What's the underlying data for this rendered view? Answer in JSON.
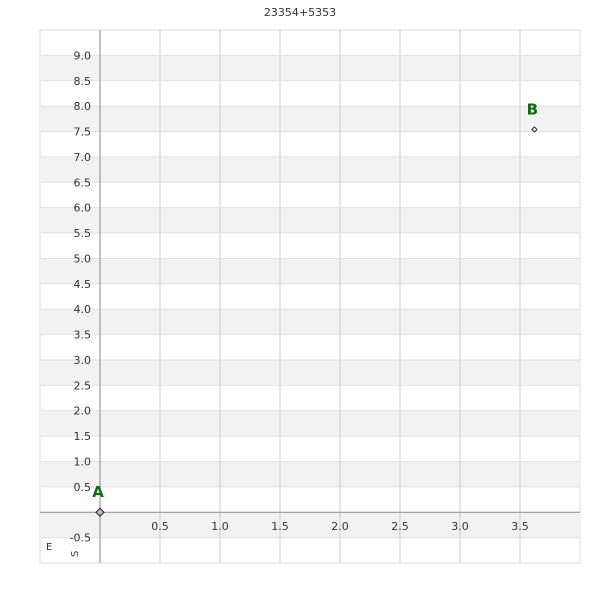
{
  "chart_data": {
    "type": "scatter",
    "title": "23354+5353",
    "xlabel": "E",
    "ylabel": "S",
    "xlim": [
      -0.5,
      4.0
    ],
    "ylim": [
      -1.0,
      9.5
    ],
    "x_ticks": [
      "0.5",
      "1.0",
      "1.5",
      "2.0",
      "2.5",
      "3.0",
      "3.5"
    ],
    "y_ticks": [
      "-0.5",
      "0.5",
      "1.0",
      "1.5",
      "2.0",
      "2.5",
      "3.0",
      "3.5",
      "4.0",
      "4.5",
      "5.0",
      "5.5",
      "6.0",
      "6.5",
      "7.0",
      "7.5",
      "8.0",
      "8.5",
      "9.0"
    ],
    "grid": true,
    "points": [
      {
        "label": "A",
        "x": 0.0,
        "y": 0.0
      },
      {
        "label": "B",
        "x": 3.62,
        "y": 7.54
      }
    ],
    "colors": {
      "label": "#0a6e0a",
      "band": "#f2f2f2",
      "grid": "#cccccc",
      "axis": "#888888"
    }
  }
}
